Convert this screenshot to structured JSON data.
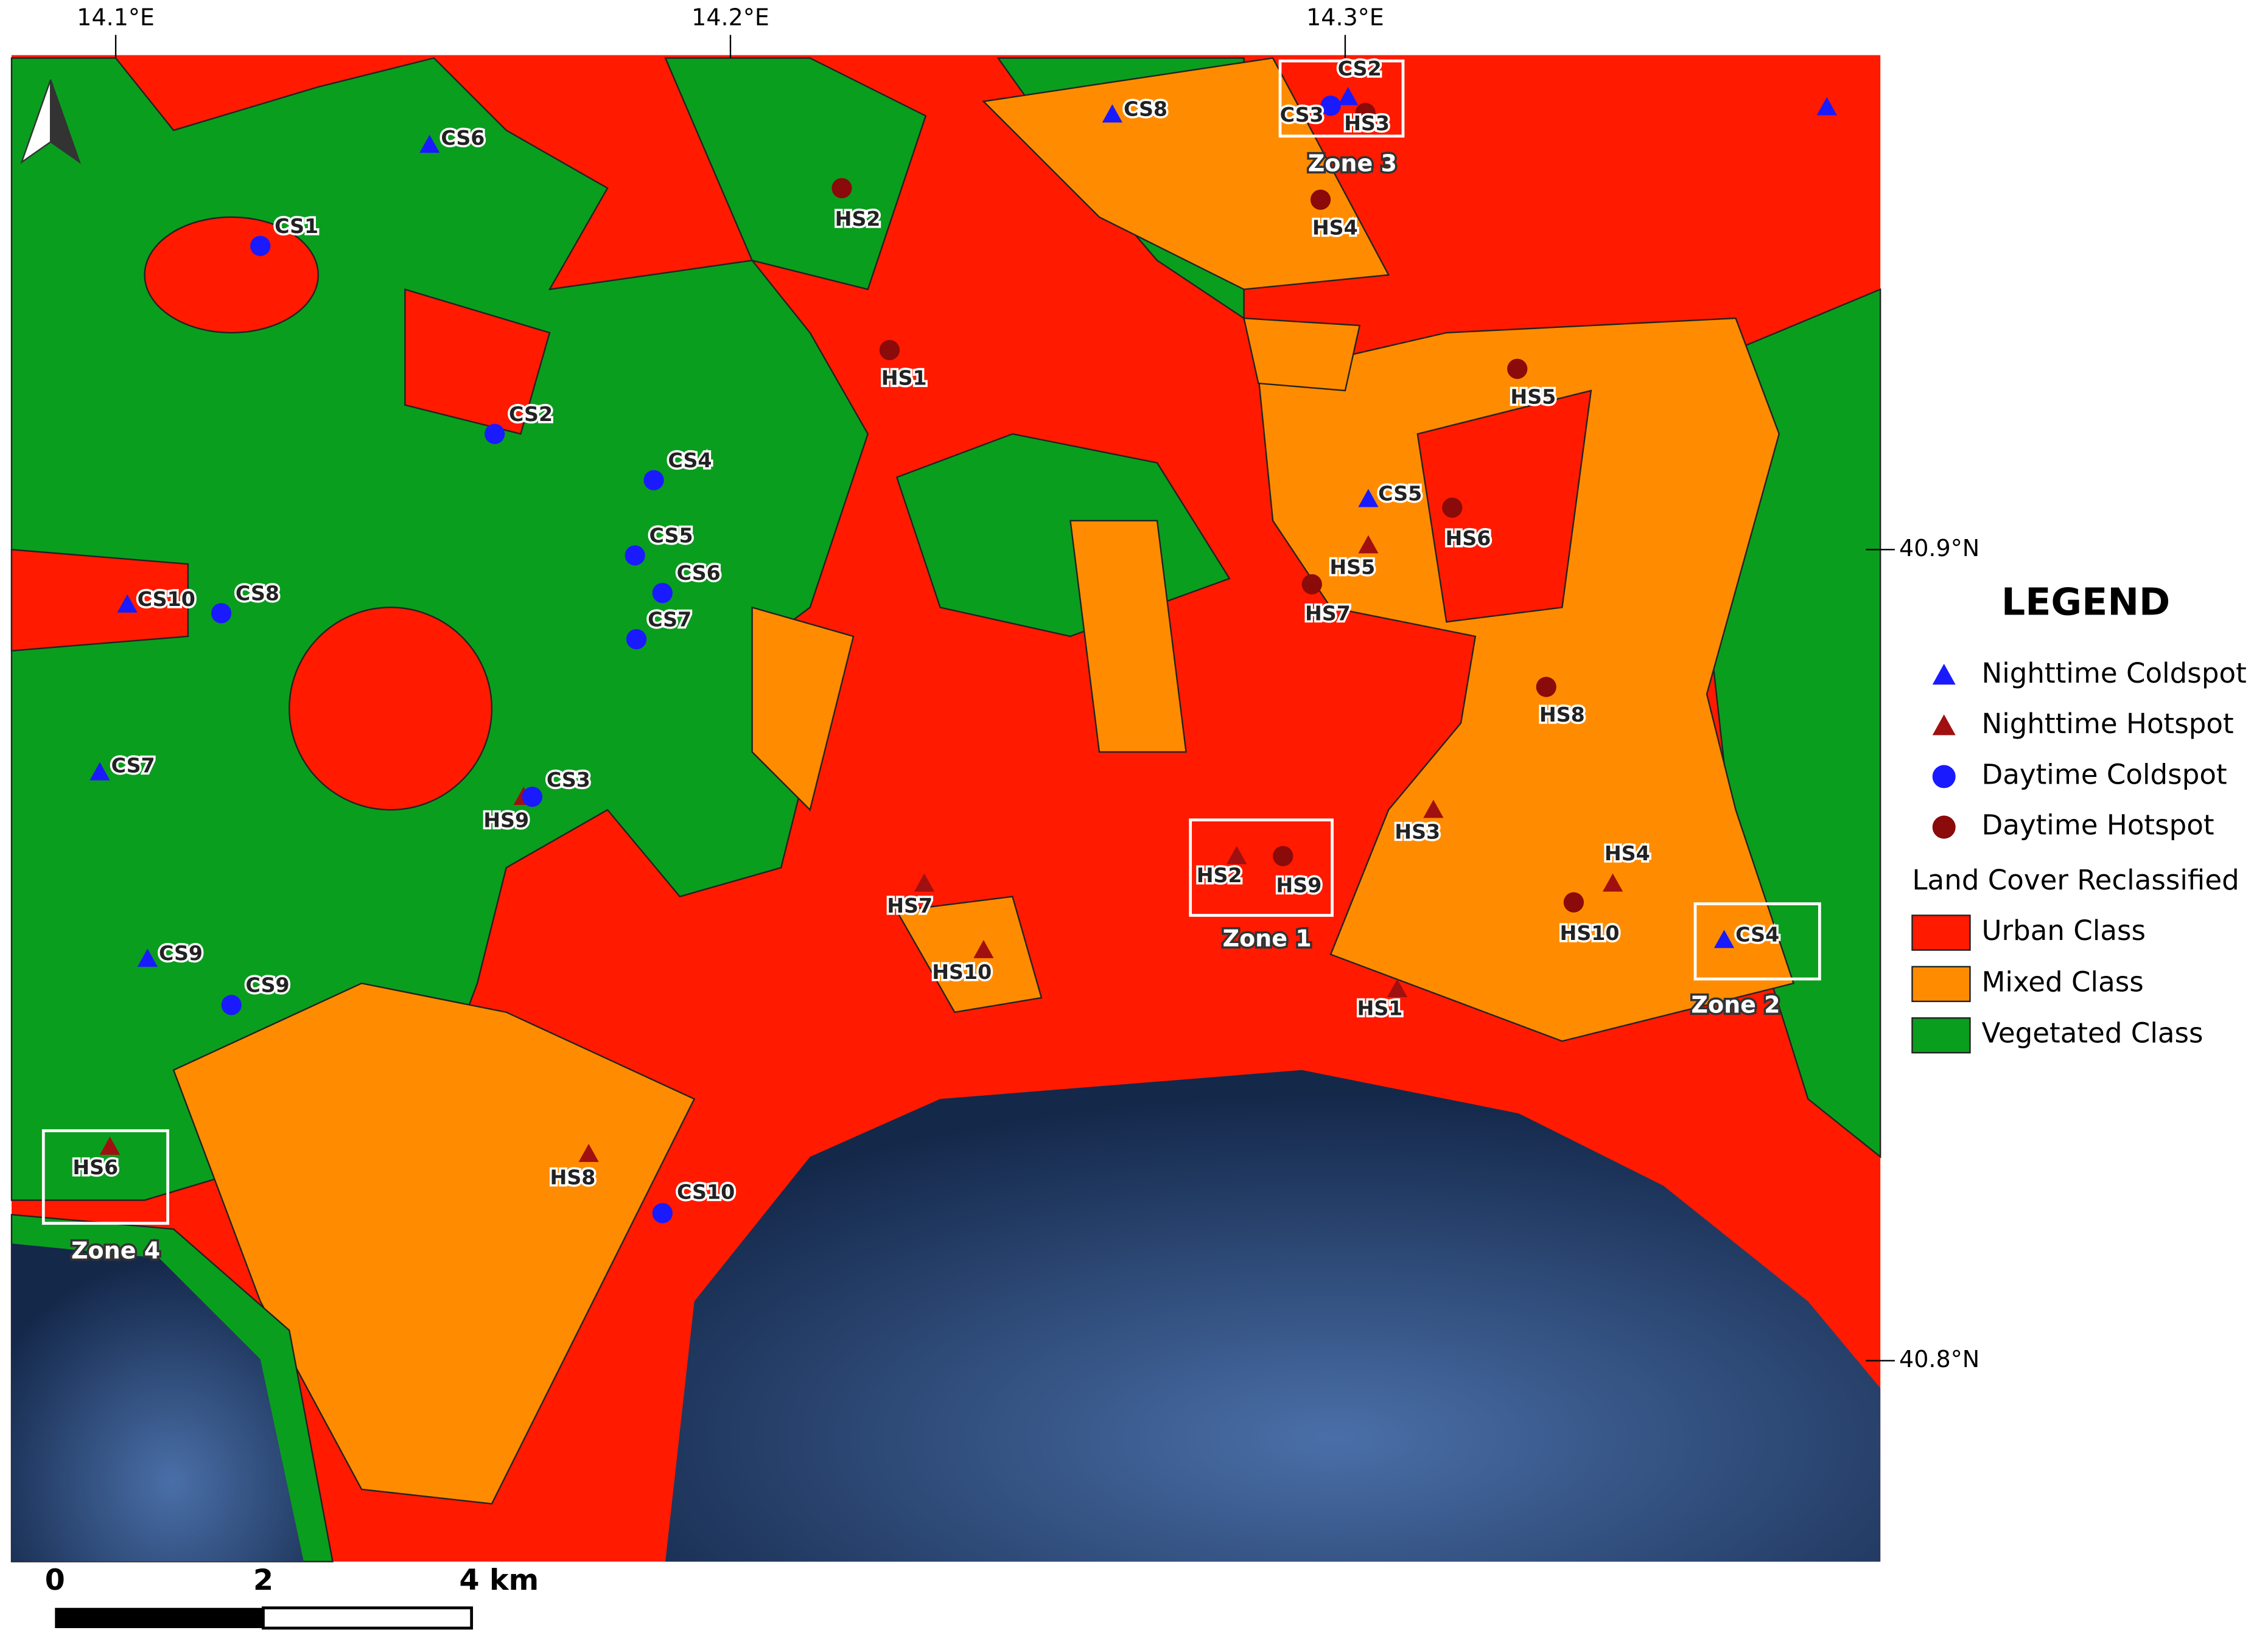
{
  "map": {
    "lon_labels": [
      "14.1°E",
      "14.2°E",
      "14.3°E"
    ],
    "lat_labels": [
      "40.9°N",
      "40.8°N"
    ],
    "legend": {
      "title": "LEGEND",
      "items": [
        {
          "name": "Nighttime Coldspot",
          "color": "#1a1aff",
          "labels": [
            "CS2",
            "CS8",
            "CS6",
            "CS5",
            "CS10",
            "CS7",
            "CS9",
            "CS4",
            null
          ]
        },
        {
          "name": "Nighttime Hotspot",
          "color": "#a01010",
          "labels": [
            "HS5",
            "HS3",
            "HS2",
            "HS4",
            "HS7",
            "HS10",
            "HS1",
            "HS9",
            "HS8",
            "HS6"
          ]
        },
        {
          "name": "Daytime Coldspot",
          "color": "#1a1aff",
          "labels": [
            "CS1",
            "CS2",
            "CS4",
            "CS5",
            "CS6",
            "CS7",
            "CS8",
            "CS3",
            "CS9",
            "CS10",
            "CS3"
          ]
        },
        {
          "name": "Daytime Hotspot",
          "color": "#8b0a0a",
          "labels": [
            "HS2",
            "HS1",
            "HS4",
            "HS5",
            "HS6",
            "HS7",
            "HS8",
            "HS9",
            "HS10",
            "HS3"
          ]
        }
      ],
      "land_cover_title": "Land Cover Reclassified",
      "classes": [
        {
          "name": "Urban Class",
          "color": "#ff1a00"
        },
        {
          "name": "Mixed Class",
          "color": "#ff8c00"
        },
        {
          "name": "Vegetated Class",
          "color": "#0a9e1e"
        }
      ]
    },
    "zones": [
      "Zone 1",
      "Zone 2",
      "Zone 3",
      "Zone 4"
    ],
    "scale_labels": [
      "0",
      "2",
      "4 km"
    ]
  }
}
